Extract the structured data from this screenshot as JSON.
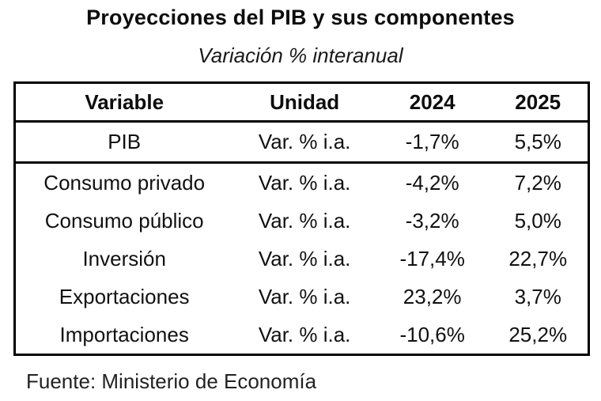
{
  "chart_data": {
    "type": "table",
    "title": "Proyecciones del PIB y sus componentes",
    "subtitle": "Variación % interanual",
    "columns": [
      "Variable",
      "Unidad",
      "2024",
      "2025"
    ],
    "rows": [
      [
        "PIB",
        "Var. % i.a.",
        "-1,7%",
        "5,5%"
      ],
      [
        "Consumo privado",
        "Var. % i.a.",
        "-4,2%",
        "7,2%"
      ],
      [
        "Consumo público",
        "Var. % i.a.",
        "-3,2%",
        "5,0%"
      ],
      [
        "Inversión",
        "Var. % i.a.",
        "-17,4%",
        "22,7%"
      ],
      [
        "Exportaciones",
        "Var. % i.a.",
        "23,2%",
        "3,7%"
      ],
      [
        "Importaciones",
        "Var. % i.a.",
        "-10,6%",
        "25,2%"
      ]
    ],
    "values_2024": [
      -1.7,
      -4.2,
      -3.2,
      -17.4,
      23.2,
      -10.6
    ],
    "values_2025": [
      5.5,
      7.2,
      5.0,
      22.7,
      3.7,
      25.2
    ],
    "unit_label": "Var. % i.a.",
    "source": "Fuente: Ministerio de Economía",
    "legend_position": "none",
    "grid": "off"
  },
  "colors": {
    "text": "#111111",
    "border": "#000000",
    "background": "#ffffff"
  }
}
